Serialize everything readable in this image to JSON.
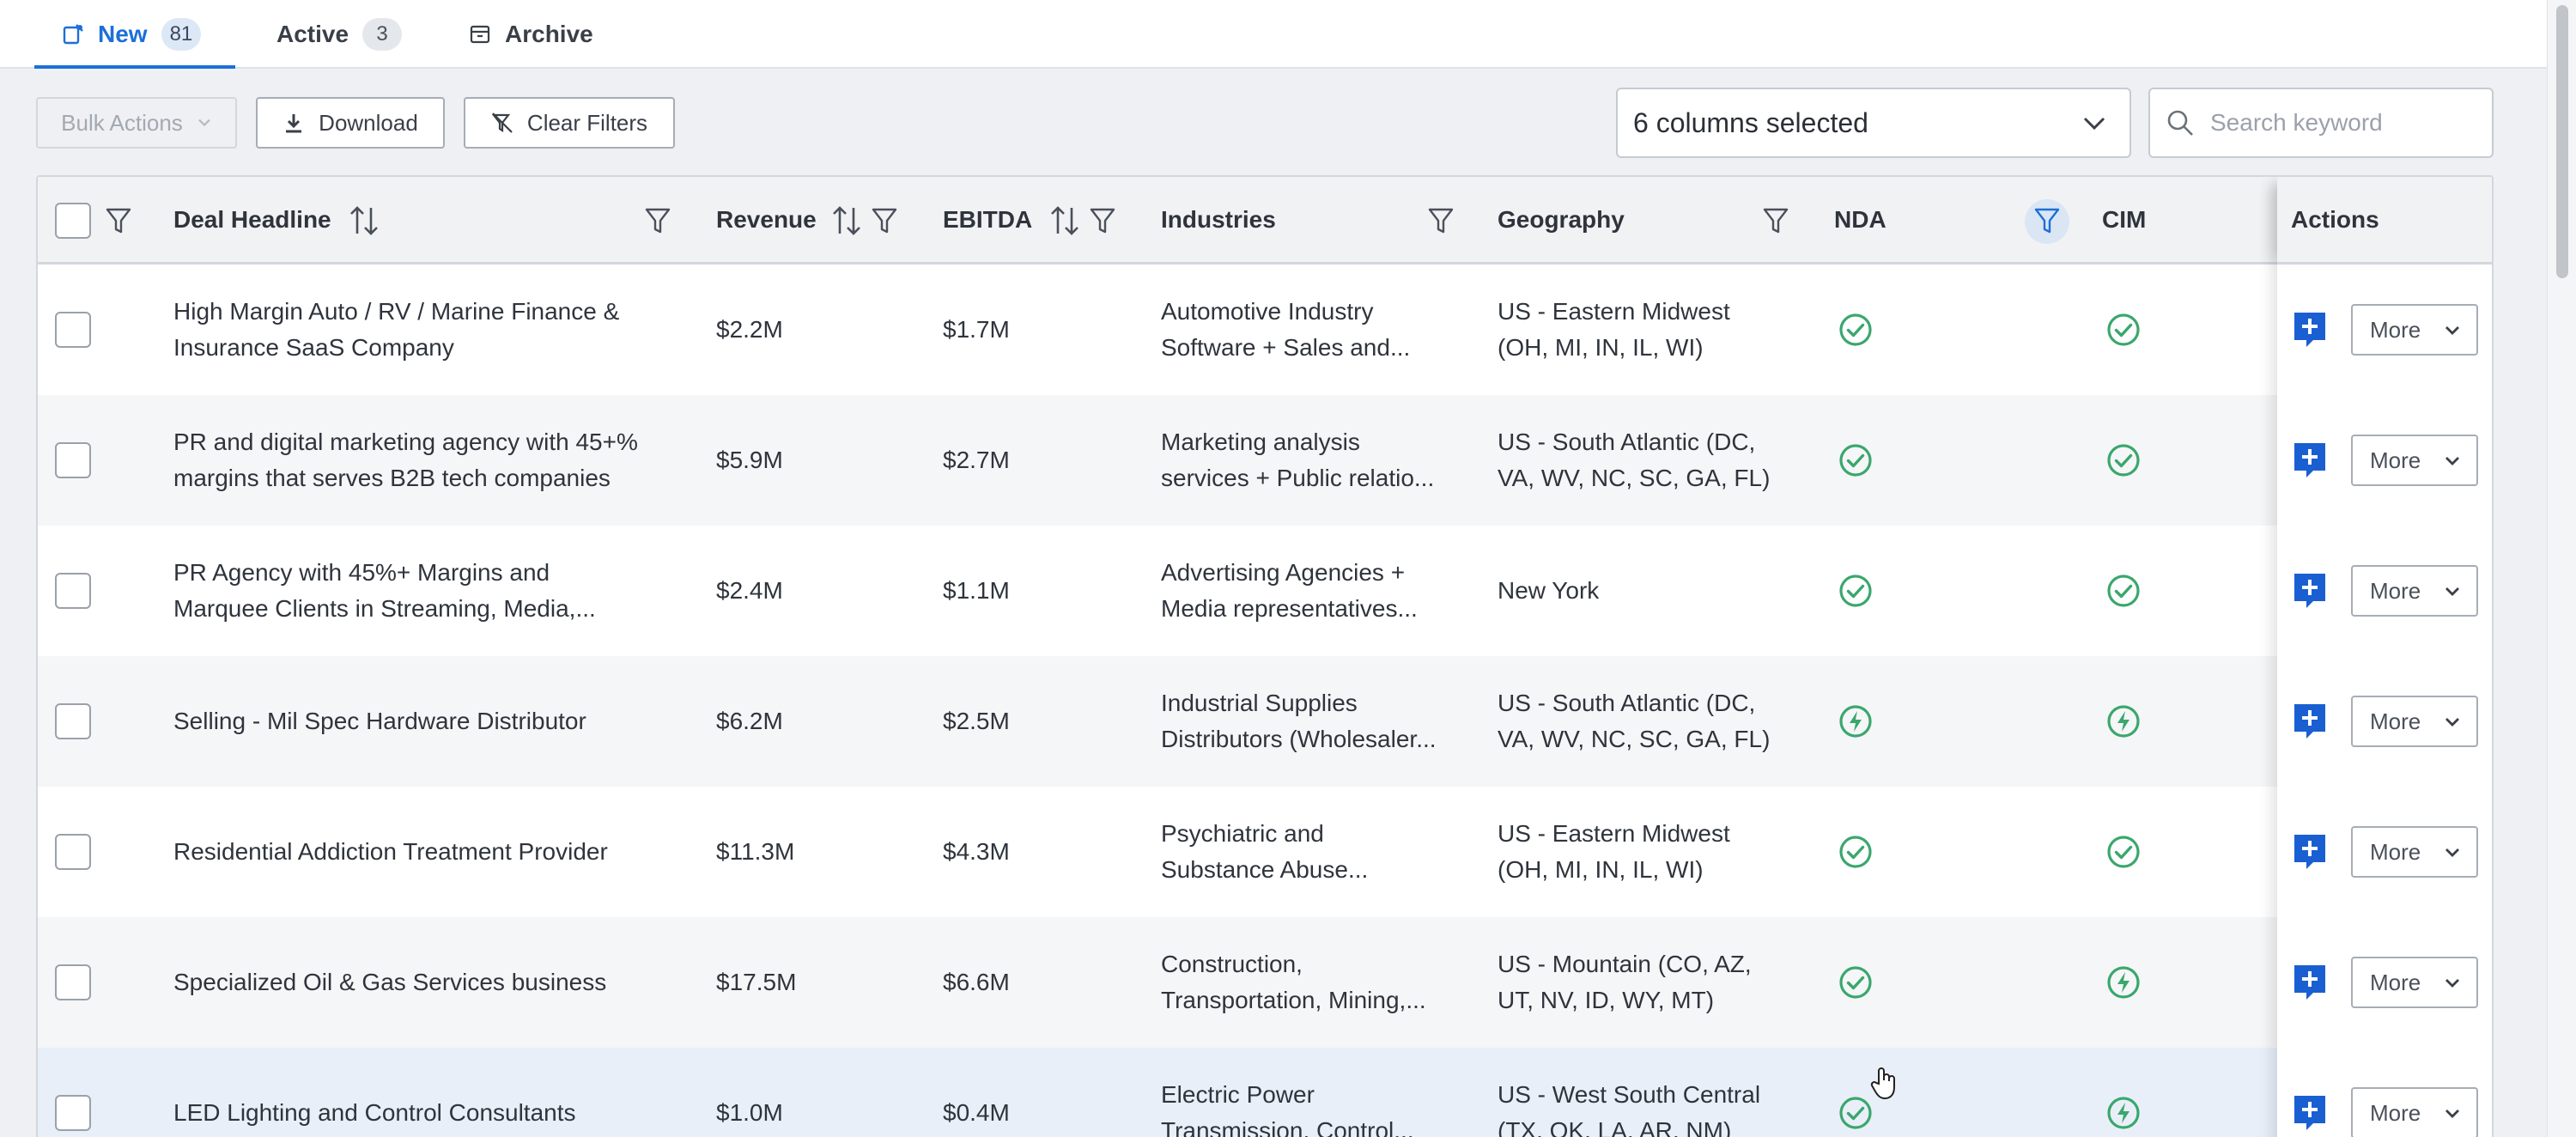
{
  "tabs": [
    {
      "label": "New",
      "count": "81",
      "icon": "new-icon"
    },
    {
      "label": "Active",
      "count": "3"
    },
    {
      "label": "Archive",
      "icon": "archive-icon"
    }
  ],
  "toolbar": {
    "bulk_actions": "Bulk Actions",
    "download": "Download",
    "clear_filters": "Clear Filters",
    "columns_selected": "6 columns selected",
    "search_placeholder": "Search keyword"
  },
  "table": {
    "headers": {
      "deal_headline": "Deal Headline",
      "revenue": "Revenue",
      "ebitda": "EBITDA",
      "industries": "Industries",
      "geography": "Geography",
      "nda": "NDA",
      "cim": "CIM",
      "actions": "Actions"
    },
    "more_label": "More",
    "rows": [
      {
        "headline": [
          "High Margin Auto / RV / Marine Finance &",
          "Insurance SaaS Company"
        ],
        "revenue": "$2.2M",
        "ebitda": "$1.7M",
        "industries": [
          "Automotive Industry",
          "Software + Sales and..."
        ],
        "geography": [
          "US - Eastern Midwest",
          "(OH, MI, IN, IL, WI)"
        ],
        "nda": "check",
        "cim": "check"
      },
      {
        "headline": [
          "PR and digital marketing agency with 45+%",
          "margins that serves B2B tech companies"
        ],
        "revenue": "$5.9M",
        "ebitda": "$2.7M",
        "industries": [
          "Marketing analysis",
          "services + Public relatio..."
        ],
        "geography": [
          "US - South Atlantic (DC,",
          "VA, WV, NC, SC, GA, FL)"
        ],
        "nda": "check",
        "cim": "check"
      },
      {
        "headline": [
          "PR Agency with 45%+ Margins and",
          "Marquee Clients in Streaming, Media,..."
        ],
        "revenue": "$2.4M",
        "ebitda": "$1.1M",
        "industries": [
          "Advertising Agencies +",
          "Media representatives..."
        ],
        "geography": [
          "New York"
        ],
        "nda": "check",
        "cim": "check"
      },
      {
        "headline": [
          "Selling - Mil Spec Hardware Distributor"
        ],
        "revenue": "$6.2M",
        "ebitda": "$2.5M",
        "industries": [
          "Industrial Supplies",
          "Distributors (Wholesaler..."
        ],
        "geography": [
          "US - South Atlantic (DC,",
          "VA, WV, NC, SC, GA, FL)"
        ],
        "nda": "bolt",
        "cim": "bolt"
      },
      {
        "headline": [
          "Residential Addiction Treatment Provider"
        ],
        "revenue": "$11.3M",
        "ebitda": "$4.3M",
        "industries": [
          "Psychiatric and",
          "Substance Abuse..."
        ],
        "geography": [
          "US - Eastern Midwest",
          "(OH, MI, IN, IL, WI)"
        ],
        "nda": "check",
        "cim": "check"
      },
      {
        "headline": [
          "Specialized Oil & Gas Services business"
        ],
        "revenue": "$17.5M",
        "ebitda": "$6.6M",
        "industries": [
          "Construction,",
          "Transportation, Mining,..."
        ],
        "geography": [
          "US - Mountain (CO, AZ,",
          "UT, NV, ID, WY, MT)"
        ],
        "nda": "check",
        "cim": "bolt"
      },
      {
        "headline": [
          "LED Lighting and Control Consultants"
        ],
        "revenue": "$1.0M",
        "ebitda": "$0.4M",
        "industries": [
          "Electric Power",
          "Transmission, Control..."
        ],
        "geography": [
          "US - West South Central",
          "(TX, OK, LA, AR, NM)"
        ],
        "nda": "check",
        "cim": "bolt"
      }
    ]
  },
  "colors": {
    "accent": "#1c6fd8",
    "status_green": "#3aa76d",
    "note_button": "#1a5fd1"
  }
}
